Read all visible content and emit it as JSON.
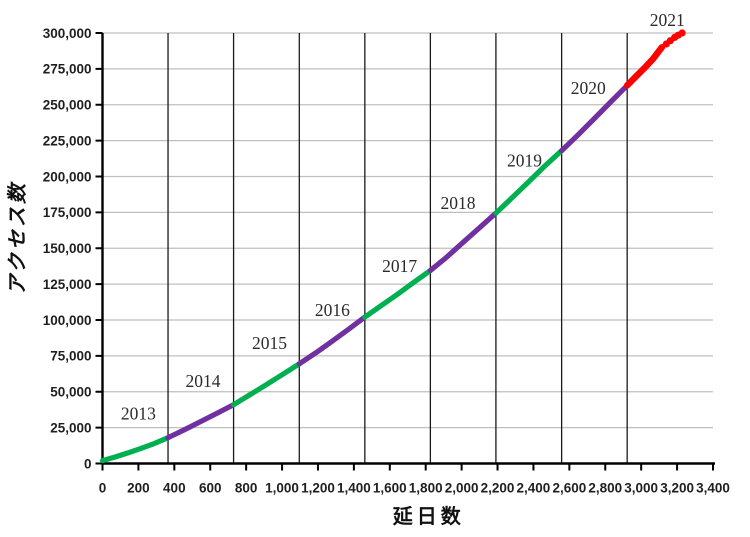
{
  "chart_data": {
    "type": "line",
    "title": "",
    "xlabel": "延日数",
    "ylabel": "アクセス数",
    "xlim": [
      0,
      3400
    ],
    "ylim": [
      0,
      300000
    ],
    "x_tick_step": 200,
    "y_tick_step": 25000,
    "grid": {
      "horizontal": "every 25,000 (light gray)",
      "vertical": "year boundaries (dark)",
      "year_boundary_days": [
        365,
        730,
        1096,
        1461,
        1826,
        2191,
        2557,
        2922
      ]
    },
    "legend_position": "none",
    "series": [
      {
        "name": "2013",
        "color": "#00B050",
        "points": [
          [
            0,
            2000
          ],
          [
            70,
            4500
          ],
          [
            140,
            7300
          ],
          [
            210,
            10300
          ],
          [
            290,
            14000
          ],
          [
            365,
            18000
          ]
        ]
      },
      {
        "name": "2014",
        "color": "#7030A0",
        "points": [
          [
            365,
            18000
          ],
          [
            455,
            23400
          ],
          [
            545,
            29100
          ],
          [
            640,
            35100
          ],
          [
            730,
            41000
          ]
        ]
      },
      {
        "name": "2015",
        "color": "#00B050",
        "points": [
          [
            730,
            41000
          ],
          [
            820,
            47800
          ],
          [
            910,
            54800
          ],
          [
            1005,
            62200
          ],
          [
            1096,
            69500
          ]
        ]
      },
      {
        "name": "2016",
        "color": "#7030A0",
        "points": [
          [
            1096,
            69500
          ],
          [
            1190,
            77300
          ],
          [
            1280,
            85300
          ],
          [
            1370,
            93500
          ],
          [
            1461,
            102000
          ]
        ]
      },
      {
        "name": "2017",
        "color": "#00B050",
        "points": [
          [
            1461,
            102000
          ],
          [
            1550,
            109800
          ],
          [
            1640,
            117700
          ],
          [
            1730,
            125900
          ],
          [
            1826,
            134500
          ]
        ]
      },
      {
        "name": "2018",
        "color": "#7030A0",
        "points": [
          [
            1826,
            134500
          ],
          [
            1920,
            144200
          ],
          [
            2010,
            154300
          ],
          [
            2100,
            164300
          ],
          [
            2191,
            174500
          ]
        ]
      },
      {
        "name": "2019",
        "color": "#00B050",
        "points": [
          [
            2191,
            174500
          ],
          [
            2280,
            185100
          ],
          [
            2370,
            195900
          ],
          [
            2460,
            206900
          ],
          [
            2557,
            218000
          ]
        ]
      },
      {
        "name": "2020",
        "color": "#7030A0",
        "points": [
          [
            2557,
            218000
          ],
          [
            2650,
            229200
          ],
          [
            2740,
            240500
          ],
          [
            2830,
            251900
          ],
          [
            2922,
            263500
          ]
        ]
      },
      {
        "name": "2021",
        "color": "#FF0000",
        "points": [
          [
            2922,
            263500
          ],
          [
            2970,
            269600
          ],
          [
            3020,
            275800
          ],
          [
            3068,
            282300
          ],
          [
            3115,
            290000
          ]
        ],
        "dots": [
          [
            3140,
            292300
          ],
          [
            3163,
            294600
          ],
          [
            3186,
            296900
          ],
          [
            3206,
            298500
          ],
          [
            3228,
            300000
          ]
        ]
      }
    ],
    "annotations": [
      {
        "text": "2013",
        "day": 200,
        "value": 35000
      },
      {
        "text": "2014",
        "day": 560,
        "value": 57500
      },
      {
        "text": "2015",
        "day": 930,
        "value": 84000
      },
      {
        "text": "2016",
        "day": 1280,
        "value": 107000
      },
      {
        "text": "2017",
        "day": 1655,
        "value": 137500
      },
      {
        "text": "2018",
        "day": 1980,
        "value": 181500
      },
      {
        "text": "2019",
        "day": 2350,
        "value": 211000
      },
      {
        "text": "2020",
        "day": 2705,
        "value": 261500
      },
      {
        "text": "2021",
        "day": 3145,
        "value": 309000
      }
    ]
  },
  "colors": {
    "background": "#ffffff",
    "axis": "#000000",
    "grid_horizontal": "#BFBFBF",
    "grid_vertical": "#1a1a1a",
    "tick_label": "#1f1f1f",
    "year_label": "#2b2b2b",
    "green_years": "#00B050",
    "purple_years": "#7030A0",
    "red_year": "#FF0000"
  }
}
